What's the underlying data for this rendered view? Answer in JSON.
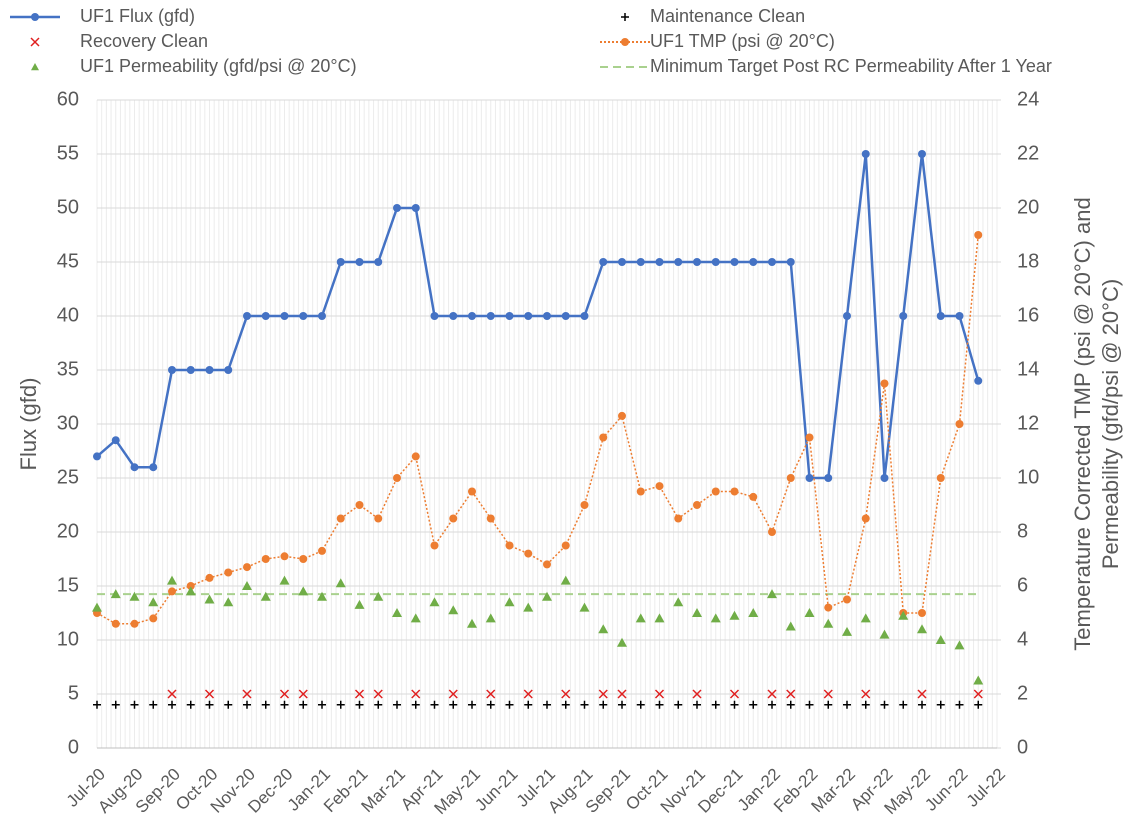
{
  "chart_data": {
    "type": "line",
    "categories": [
      "Jul-20",
      null,
      "Aug-20",
      null,
      "Sep-20",
      null,
      "Oct-20",
      null,
      "Nov-20",
      null,
      "Dec-20",
      null,
      "Jan-21",
      null,
      "Feb-21",
      null,
      "Mar-21",
      null,
      "Apr-21",
      null,
      "May-21",
      null,
      "Jun-21",
      null,
      "Jul-21",
      null,
      "Aug-21",
      null,
      "Sep-21",
      null,
      "Oct-21",
      null,
      "Nov-21",
      null,
      "Dec-21",
      null,
      "Jan-22",
      null,
      "Feb-22",
      null,
      "Mar-22",
      null,
      "Apr-22",
      null,
      "May-22",
      null,
      "Jun-22",
      null,
      "Jul-22"
    ],
    "series": [
      {
        "name": "UF1 Flux (gfd)",
        "color": "#4472c4",
        "line": "solid",
        "marker": "circle",
        "axis": "y",
        "values": [
          27,
          28.5,
          26,
          26,
          35,
          35,
          35,
          35,
          40,
          40,
          40,
          40,
          40,
          45,
          45,
          45,
          50,
          50,
          40,
          40,
          40,
          40,
          40,
          40,
          40,
          40,
          40,
          45,
          45,
          45,
          45,
          45,
          45,
          45,
          45,
          45,
          45,
          45,
          25,
          25,
          40,
          55,
          25,
          40,
          55,
          40,
          40,
          34,
          null
        ]
      },
      {
        "name": "Maintenance Clean",
        "color": "#000000",
        "line": "none",
        "marker": "plus",
        "axis": "y",
        "values": [
          4,
          4,
          4,
          4,
          4,
          4,
          4,
          4,
          4,
          4,
          4,
          4,
          4,
          4,
          4,
          4,
          4,
          4,
          4,
          4,
          4,
          4,
          4,
          4,
          4,
          4,
          4,
          4,
          4,
          4,
          4,
          4,
          4,
          4,
          4,
          4,
          4,
          4,
          4,
          4,
          4,
          4,
          4,
          4,
          4,
          4,
          4,
          4,
          null
        ]
      },
      {
        "name": "Recovery Clean",
        "color": "#e02020",
        "line": "none",
        "marker": "x",
        "axis": "y",
        "values": [
          null,
          null,
          null,
          null,
          5,
          null,
          5,
          null,
          5,
          null,
          5,
          5,
          null,
          null,
          5,
          5,
          null,
          5,
          null,
          5,
          null,
          5,
          null,
          5,
          null,
          5,
          null,
          5,
          5,
          null,
          5,
          null,
          5,
          null,
          5,
          null,
          5,
          5,
          null,
          5,
          null,
          5,
          null,
          null,
          5,
          null,
          null,
          5,
          null
        ]
      },
      {
        "name": "UF1 TMP (psi @ 20°C)",
        "color": "#ed7d31",
        "line": "dotted",
        "marker": "circle",
        "axis": "y2",
        "values": [
          5,
          4.6,
          4.6,
          4.8,
          5.8,
          6,
          6.3,
          6.5,
          6.7,
          7,
          7.1,
          7,
          7.3,
          8.5,
          9,
          8.5,
          10,
          10.8,
          7.5,
          8.5,
          9.5,
          8.5,
          7.5,
          7.2,
          6.8,
          7.5,
          9,
          11.5,
          12.3,
          9.5,
          9.7,
          8.5,
          9,
          9.5,
          9.5,
          9.3,
          8,
          10,
          11.5,
          5.2,
          5.5,
          8.5,
          13.5,
          5,
          5,
          10,
          12,
          19,
          null
        ]
      },
      {
        "name": "UF1 Permeability (gfd/psi @ 20°C)",
        "color": "#70ad47",
        "line": "none",
        "marker": "triangle",
        "axis": "y2",
        "values": [
          5.2,
          5.7,
          5.6,
          5.4,
          6.2,
          5.8,
          5.5,
          5.4,
          6,
          5.6,
          6.2,
          5.8,
          5.6,
          6.1,
          5.3,
          5.6,
          5,
          4.8,
          5.4,
          5.1,
          4.6,
          4.8,
          5.4,
          5.2,
          5.6,
          6.2,
          5.2,
          4.4,
          3.9,
          4.8,
          4.8,
          5.4,
          5,
          4.8,
          4.9,
          5,
          5.7,
          4.5,
          5,
          4.6,
          4.3,
          4.8,
          4.2,
          4.9,
          4.4,
          4,
          3.8,
          2.5,
          null
        ]
      }
    ],
    "reference_line": {
      "name": "Minimum Target Post RC Permeability After 1 Year",
      "color": "#a9d18e",
      "value": 5.7,
      "axis": "y2"
    },
    "ylabel": "Flux (gfd)",
    "y2label": [
      "Temperature Corrected TMP (psi @ 20°C) and",
      "Permeability (gfd/psi @ 20°C)"
    ],
    "ylim": [
      0,
      60
    ],
    "yticks": [
      0,
      5,
      10,
      15,
      20,
      25,
      30,
      35,
      40,
      45,
      50,
      55,
      60
    ],
    "y2lim": [
      0,
      24
    ],
    "y2ticks": [
      0,
      2,
      4,
      6,
      8,
      10,
      12,
      14,
      16,
      18,
      20,
      22,
      24
    ],
    "grid": true,
    "legend": "top"
  }
}
